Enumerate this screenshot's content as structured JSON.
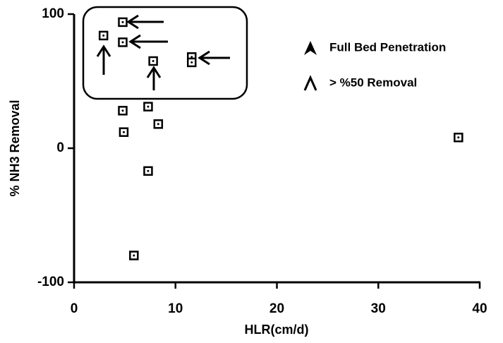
{
  "chart_data": {
    "type": "scatter",
    "x": [
      4.8,
      2.9,
      4.8,
      7.8,
      11.6,
      11.6,
      4.8,
      7.3,
      4.9,
      8.3,
      7.3,
      5.9,
      37.9
    ],
    "values": [
      94,
      84,
      79,
      65,
      68,
      64,
      28,
      31,
      12,
      18,
      -17,
      -80,
      8
    ],
    "color": "#000000",
    "xlabel": "HLR(cm/d)",
    "ylabel": "% NH3 Removal",
    "xlim": [
      0,
      40
    ],
    "xticks": [
      0,
      10,
      20,
      30,
      40
    ],
    "ylim": [
      -100,
      100
    ],
    "yticks": [
      -100,
      0,
      100
    ],
    "annotations": [
      "Full Bed Penetration",
      "> %50 Removal"
    ]
  }
}
